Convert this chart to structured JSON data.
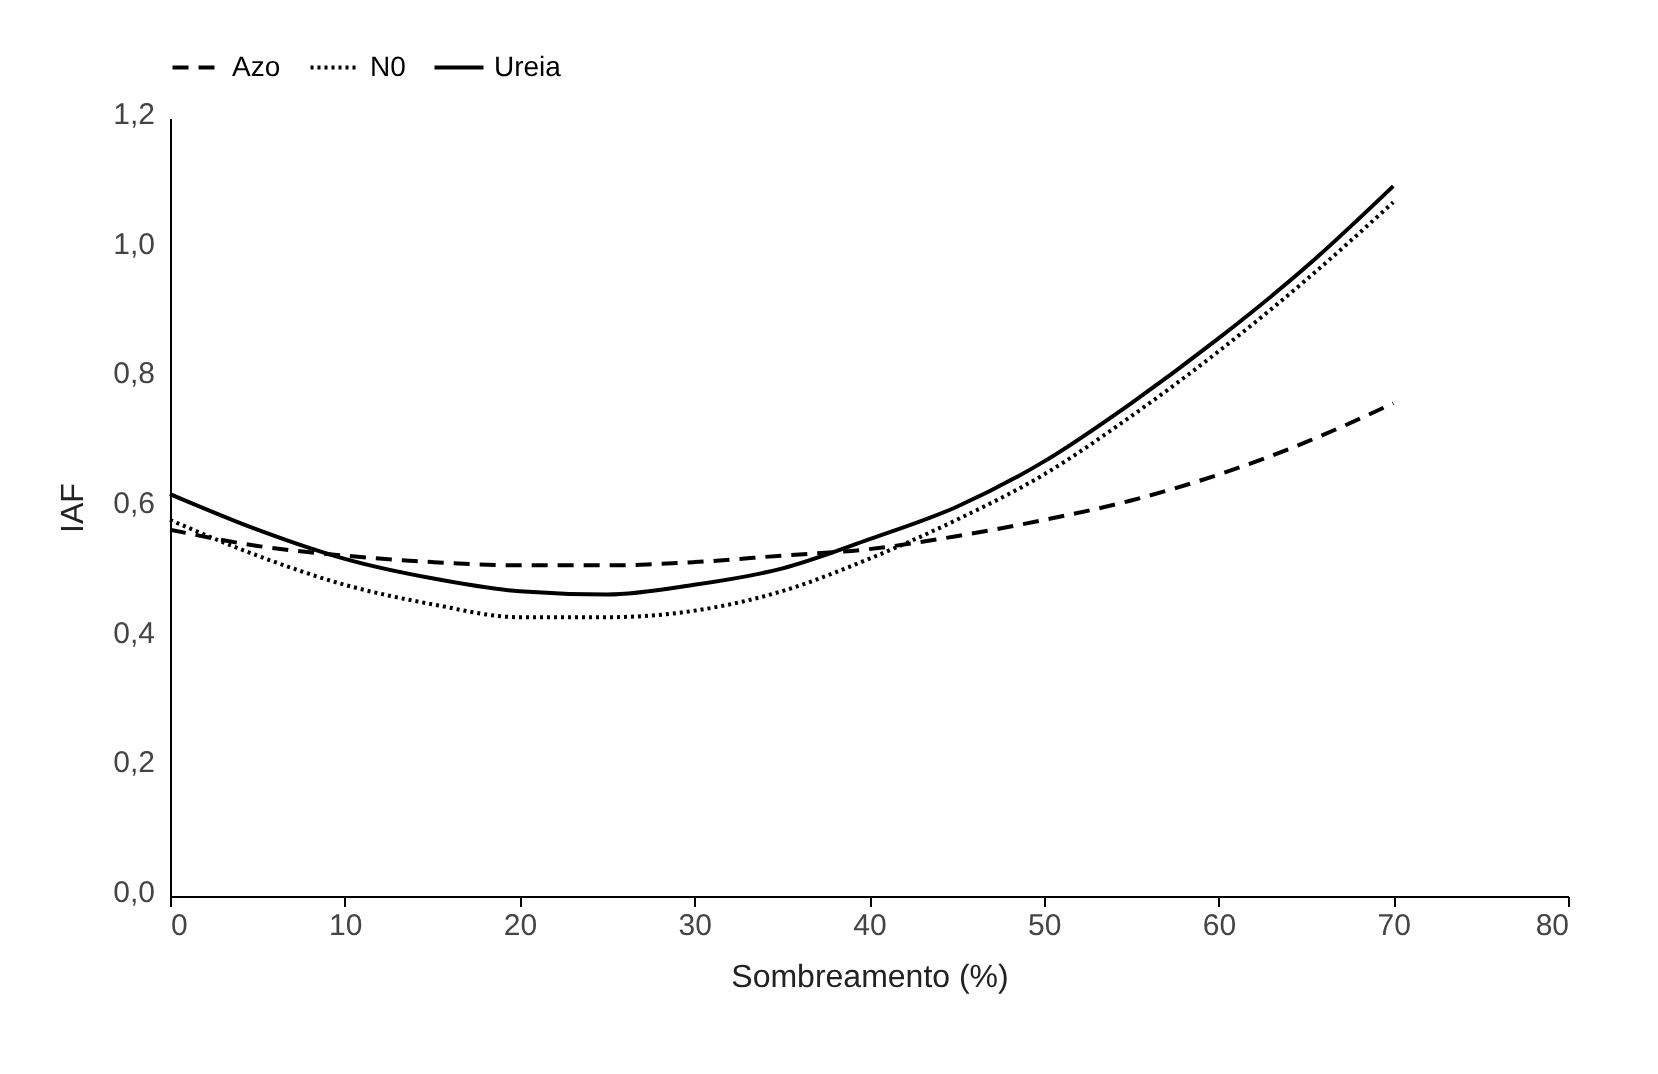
{
  "chart_data": {
    "type": "line",
    "xlabel": "Sombreamento (%)",
    "ylabel": "IAF",
    "x": [
      0,
      5,
      10,
      15,
      20,
      25,
      30,
      35,
      40,
      45,
      50,
      55,
      60,
      65,
      70
    ],
    "series": [
      {
        "name": "Azo",
        "color": "#000000",
        "line_style": "dashed",
        "values": [
          0.565,
          0.54,
          0.525,
          0.515,
          0.51,
          0.51,
          0.515,
          0.525,
          0.535,
          0.555,
          0.58,
          0.61,
          0.65,
          0.7,
          0.76
        ]
      },
      {
        "name": "N0",
        "color": "#000000",
        "line_style": "dotted",
        "values": [
          0.58,
          0.525,
          0.48,
          0.45,
          0.43,
          0.43,
          0.44,
          0.47,
          0.52,
          0.58,
          0.65,
          0.74,
          0.84,
          0.95,
          1.07
        ]
      },
      {
        "name": "Ureia",
        "color": "#000000",
        "line_style": "solid",
        "values": [
          0.62,
          0.565,
          0.52,
          0.49,
          0.47,
          0.465,
          0.48,
          0.505,
          0.55,
          0.6,
          0.67,
          0.76,
          0.86,
          0.97,
          1.095
        ]
      }
    ],
    "xlim": [
      0,
      80
    ],
    "xticks": [
      0,
      10,
      20,
      30,
      40,
      50,
      60,
      70,
      80
    ],
    "ylim": [
      0,
      1.2
    ],
    "yticks": [
      {
        "value": 0,
        "label": "0,0"
      },
      {
        "value": 0.2,
        "label": "0,2"
      },
      {
        "value": 0.4,
        "label": "0,4"
      },
      {
        "value": 0.6,
        "label": "0,6"
      },
      {
        "value": 0.8,
        "label": "0,8"
      },
      {
        "value": 1.0,
        "label": "1,0"
      },
      {
        "value": 1.2,
        "label": "1,2"
      }
    ],
    "grid": false,
    "legend": "top",
    "marker": "none"
  }
}
